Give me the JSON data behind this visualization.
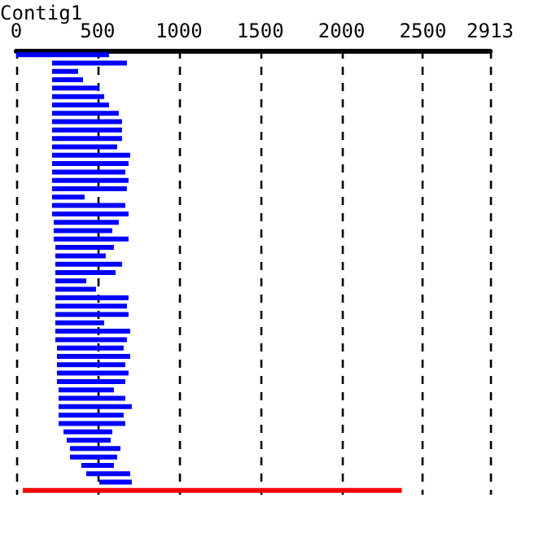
{
  "chart_data": {
    "type": "bar",
    "title": "Contig1",
    "orientation": "horizontal",
    "grid": "x",
    "tick_labels": "x",
    "xlim": [
      0,
      2913
    ],
    "xticks": [
      0,
      500,
      1000,
      1500,
      2000,
      2500,
      2913
    ],
    "categories": [
      null,
      null,
      null,
      null,
      null,
      null,
      null,
      null,
      null,
      null,
      null,
      null,
      null,
      null,
      null,
      null,
      null,
      null,
      null,
      null,
      null,
      null,
      null,
      null,
      null,
      null,
      null,
      null,
      null,
      null,
      null,
      null,
      null,
      null,
      null,
      null,
      null,
      null,
      null,
      null,
      null,
      null,
      null,
      null,
      null,
      null,
      null,
      null,
      null,
      null,
      null,
      null,
      null
    ],
    "base": [
      0,
      220,
      220,
      220,
      220,
      220,
      220,
      220,
      220,
      220,
      220,
      220,
      220,
      220,
      220,
      220,
      220,
      220,
      220,
      220,
      230,
      230,
      230,
      240,
      240,
      240,
      240,
      240,
      240,
      240,
      240,
      240,
      240,
      240,
      240,
      250,
      250,
      250,
      250,
      250,
      260,
      260,
      260,
      260,
      260,
      290,
      310,
      330,
      330,
      400,
      430,
      510,
      40
    ],
    "values": [
      570,
      460,
      160,
      190,
      290,
      320,
      350,
      410,
      430,
      430,
      430,
      400,
      480,
      470,
      450,
      470,
      460,
      200,
      450,
      470,
      400,
      360,
      460,
      360,
      310,
      410,
      370,
      190,
      250,
      450,
      440,
      450,
      300,
      460,
      440,
      410,
      450,
      420,
      440,
      420,
      340,
      410,
      450,
      400,
      410,
      300,
      270,
      310,
      290,
      200,
      270,
      200,
      2330
    ],
    "colors": [
      "#0000ff",
      "#0000ff",
      "#0000ff",
      "#0000ff",
      "#0000ff",
      "#0000ff",
      "#0000ff",
      "#0000ff",
      "#0000ff",
      "#0000ff",
      "#0000ff",
      "#0000ff",
      "#0000ff",
      "#0000ff",
      "#0000ff",
      "#0000ff",
      "#0000ff",
      "#0000ff",
      "#0000ff",
      "#0000ff",
      "#0000ff",
      "#0000ff",
      "#0000ff",
      "#0000ff",
      "#0000ff",
      "#0000ff",
      "#0000ff",
      "#0000ff",
      "#0000ff",
      "#0000ff",
      "#0000ff",
      "#0000ff",
      "#0000ff",
      "#0000ff",
      "#0000ff",
      "#0000ff",
      "#0000ff",
      "#0000ff",
      "#0000ff",
      "#0000ff",
      "#0000ff",
      "#0000ff",
      "#0000ff",
      "#0000ff",
      "#0000ff",
      "#0000ff",
      "#0000ff",
      "#0000ff",
      "#0000ff",
      "#0000ff",
      "#0000ff",
      "#0000ff",
      "#ff0000"
    ]
  }
}
